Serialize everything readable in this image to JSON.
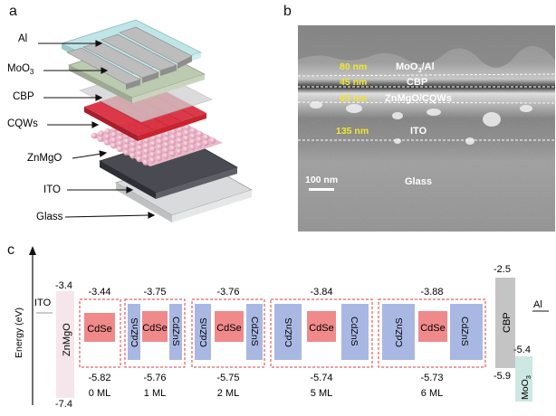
{
  "panel_a": {
    "letter": "a",
    "layers": [
      {
        "label": "Al"
      },
      {
        "label": "MoO",
        "sub": "3"
      },
      {
        "label": "CBP"
      },
      {
        "label": "CQWs"
      },
      {
        "label": "ZnMgO"
      },
      {
        "label": "ITO"
      },
      {
        "label": "Glass"
      }
    ]
  },
  "panel_b": {
    "letter": "b",
    "thicknesses": [
      "80 nm",
      "45 nm",
      "65 nm",
      "135 nm"
    ],
    "layers": [
      {
        "label": "MoO",
        "sub": "3",
        "suffix": "/Al"
      },
      {
        "label": "CBP"
      },
      {
        "label": "ZnMgO/CQWs"
      },
      {
        "label": "ITO"
      },
      {
        "label": "Glass"
      }
    ],
    "scale_bar": "100 nm"
  },
  "panel_c": {
    "letter": "c",
    "y_axis_label": "Energy (eV)",
    "ito_label": "ITO",
    "znmgo": {
      "label": "ZnMgO",
      "top": "-3.4",
      "bottom": "-7.4"
    },
    "groups": [
      {
        "ml": "0 ML",
        "top": "-3.44",
        "bottom": "-5.82",
        "blocks": [
          "CdSe"
        ]
      },
      {
        "ml": "1 ML",
        "top": "-3.75",
        "bottom": "-5.76",
        "blocks": [
          "CdZnS",
          "CdSe",
          "CdZnS"
        ]
      },
      {
        "ml": "2 ML",
        "top": "-3.76",
        "bottom": "-5.75",
        "blocks": [
          "CdZnS",
          "CdSe",
          "CdZnS"
        ]
      },
      {
        "ml": "5 ML",
        "top": "-3.84",
        "bottom": "-5.74",
        "blocks": [
          "CdZnS",
          "CdSe",
          "CdZnS"
        ]
      },
      {
        "ml": "6 ML",
        "top": "-3.88",
        "bottom": "-5.73",
        "blocks": [
          "CdZnS",
          "CdSe",
          "CdZnS"
        ]
      }
    ],
    "cbp": {
      "label": "CBP",
      "top": "-2.5",
      "bottom": "-5.9"
    },
    "moo3": {
      "label": "MoO",
      "sub": "3",
      "top": "-5.4"
    },
    "al_label": "Al",
    "colors": {
      "cdse": "#f08a8a",
      "cdzns": "#a9b8e3",
      "znmgo": "#f5e6ec",
      "cbp": "#c4c4c4",
      "moo3": "#cde7e2",
      "dash": "#e03a3a"
    }
  }
}
